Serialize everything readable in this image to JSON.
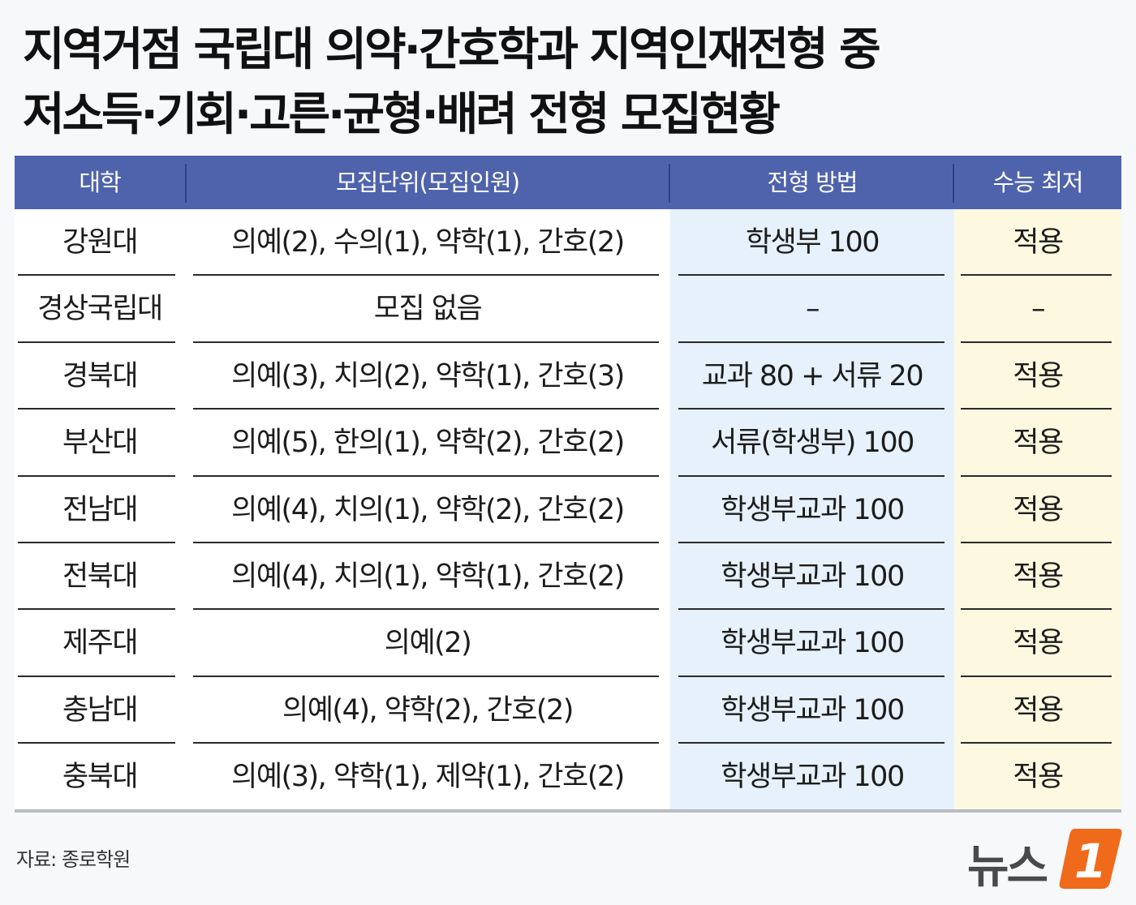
{
  "title": {
    "line1": "지역거점 국립대 의약·간호학과 지역인재전형 중",
    "line2": "저소득·기회·고른·균형·배려 전형 모집현황"
  },
  "table": {
    "headers": [
      "대학",
      "모집단위(모집인원)",
      "전형 방법",
      "수능 최저"
    ],
    "rows": [
      {
        "univ": "강원대",
        "units": "의예(2), 수의(1), 약학(1), 간호(2)",
        "method": "학생부 100",
        "min": "적용"
      },
      {
        "univ": "경상국립대",
        "units": "모집 없음",
        "method": "–",
        "min": "–"
      },
      {
        "univ": "경북대",
        "units": "의예(3), 치의(2), 약학(1), 간호(3)",
        "method": "교과 80 + 서류 20",
        "min": "적용"
      },
      {
        "univ": "부산대",
        "units": "의예(5), 한의(1), 약학(2), 간호(2)",
        "method": "서류(학생부) 100",
        "min": "적용"
      },
      {
        "univ": "전남대",
        "units": "의예(4), 치의(1), 약학(2), 간호(2)",
        "method": "학생부교과 100",
        "min": "적용"
      },
      {
        "univ": "전북대",
        "units": "의예(4), 치의(1), 약학(1), 간호(2)",
        "method": "학생부교과 100",
        "min": "적용"
      },
      {
        "univ": "제주대",
        "units": "의예(2)",
        "method": "학생부교과 100",
        "min": "적용"
      },
      {
        "univ": "충남대",
        "units": "의예(4), 약학(2), 간호(2)",
        "method": "학생부교과 100",
        "min": "적용"
      },
      {
        "univ": "충북대",
        "units": "의예(3), 약학(1), 제약(1), 간호(2)",
        "method": "학생부교과 100",
        "min": "적용"
      }
    ]
  },
  "source": "자료: 종로학원",
  "logo": {
    "text": "뉴스",
    "mark": "1"
  },
  "colors": {
    "header_bg": "#4f63ad",
    "method_tint": "#e6f1fb",
    "min_tint": "#fdf9e0",
    "logo_accent": "#f06a1c"
  }
}
